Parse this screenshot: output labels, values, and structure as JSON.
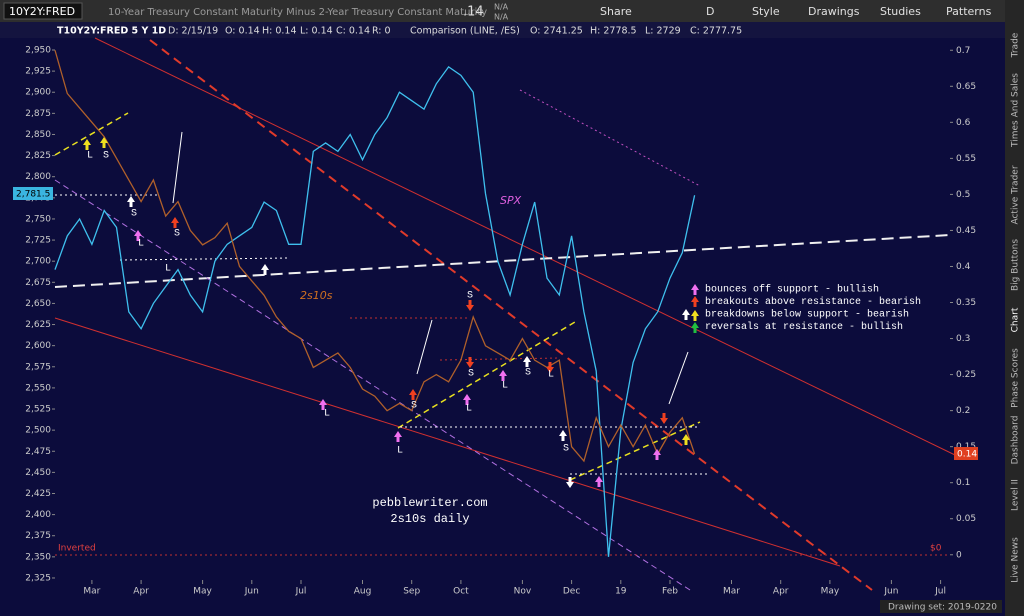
{
  "toolbar": {
    "symbol": "10Y2Y:FRED",
    "description": "10-Year Treasury Constant Maturity Minus 2-Year Treasury Constant Maturity",
    "last": ".14",
    "change": "N/A",
    "percent_change": "N/A",
    "buttons": [
      "Share",
      "D",
      "Style",
      "Drawings",
      "Studies",
      "Patterns"
    ]
  },
  "chart_header": [
    "T10Y2Y:FRED 5 Y 1D",
    "D: 2/15/19",
    "O: 0.14",
    "H: 0.14",
    "L: 0.14",
    "C: 0.14",
    "R: 0",
    "Comparison (LINE, /ES)",
    "O: 2741.25",
    "H: 2778.5",
    "L: 2729",
    "C: 2777.75"
  ],
  "price_bubbles": {
    "left": "2,781.5",
    "right": "0.14"
  },
  "annotations": {
    "legend": [
      "bounces off support - bullish",
      "breakouts above resistance - bearish",
      "breakdowns below support - bearish",
      "reversals at resistance - bullish"
    ],
    "site": "pebblewriter.com",
    "caption": "2s10s daily",
    "inverted": "Inverted",
    "zero": "$0",
    "markers": [
      "L",
      "S",
      "S",
      "L",
      "S",
      "L",
      "L",
      "S",
      "L",
      "S",
      "S",
      "L",
      "L",
      "S",
      "L",
      "S"
    ]
  },
  "sidebar": [
    "Trade",
    "Times And Sales",
    "Active Trader",
    "Big Buttons",
    "Chart",
    "Phase Scores",
    "Dashboard",
    "Level II",
    "Live News"
  ],
  "status": "Drawing set: 2019-0220",
  "chart_data": {
    "type": "line",
    "grid": false,
    "categories": [
      null,
      null,
      null,
      "Mar",
      null,
      null,
      null,
      "Apr",
      null,
      null,
      null,
      null,
      "May",
      null,
      null,
      null,
      "Jun",
      null,
      null,
      null,
      "Jul",
      null,
      null,
      null,
      null,
      "Aug",
      null,
      null,
      null,
      "Sep",
      null,
      null,
      null,
      "Oct",
      null,
      null,
      null,
      null,
      "Nov",
      null,
      null,
      null,
      "Dec",
      null,
      null,
      null,
      "19",
      null,
      null,
      null,
      "Feb",
      null,
      null,
      null,
      null,
      "Mar",
      null,
      null,
      null,
      "Apr",
      null,
      null,
      null,
      "May",
      null,
      null,
      null,
      null,
      "Jun",
      null,
      null,
      null,
      "Jul"
    ],
    "series": [
      {
        "name": "SPX",
        "color": "#3fc0ee",
        "values": [
          2690,
          2730,
          2750,
          2720,
          2760,
          2740,
          2640,
          2620,
          2650,
          2670,
          2690,
          2660,
          2640,
          2700,
          2720,
          2730,
          2740,
          2770,
          2760,
          2720,
          2720,
          2830,
          2840,
          2830,
          2850,
          2820,
          2850,
          2870,
          2900,
          2890,
          2880,
          2910,
          2930,
          2920,
          2900,
          2780,
          2700,
          2660,
          2720,
          2770,
          2680,
          2660,
          2730,
          2640,
          2570,
          2350,
          2500,
          2580,
          2620,
          2640,
          2680,
          2710,
          2778,
          null,
          null,
          null,
          null,
          null,
          null,
          null,
          null,
          null,
          null,
          null,
          null,
          null,
          null,
          null,
          null,
          null,
          null,
          null,
          null
        ]
      },
      {
        "name": "2s10s",
        "color": "#b0602a",
        "axis": "y2",
        "values": [
          0.7,
          0.64,
          0.62,
          0.6,
          0.58,
          0.55,
          0.52,
          0.49,
          0.52,
          0.47,
          0.49,
          0.45,
          0.43,
          0.44,
          0.46,
          0.4,
          0.38,
          0.36,
          0.33,
          0.31,
          0.3,
          0.26,
          0.27,
          0.28,
          0.26,
          0.23,
          0.22,
          0.2,
          0.21,
          0.2,
          0.24,
          0.25,
          0.24,
          0.27,
          0.33,
          0.29,
          0.28,
          0.27,
          0.3,
          0.27,
          0.26,
          0.27,
          0.15,
          0.13,
          0.19,
          0.15,
          0.18,
          0.15,
          0.18,
          0.14,
          0.17,
          0.19,
          0.14,
          null,
          null,
          null,
          null,
          null,
          null,
          null,
          null,
          null,
          null,
          null,
          null,
          null,
          null,
          null,
          null,
          null,
          null,
          null,
          null
        ]
      }
    ],
    "ylim": [
      2322.6,
      2964.2
    ],
    "yticks": [
      {
        "value": 2325,
        "label": "2,325"
      },
      {
        "value": 2350,
        "label": "2,350"
      },
      {
        "value": 2375,
        "label": "2,375"
      },
      {
        "value": 2400,
        "label": "2,400"
      },
      {
        "value": 2425,
        "label": "2,425"
      },
      {
        "value": 2450,
        "label": "2,450"
      },
      {
        "value": 2475,
        "label": "2,475"
      },
      {
        "value": 2500,
        "label": "2,500"
      },
      {
        "value": 2525,
        "label": "2,525"
      },
      {
        "value": 2550,
        "label": "2,550"
      },
      {
        "value": 2575,
        "label": "2,575"
      },
      {
        "value": 2600,
        "label": "2,600"
      },
      {
        "value": 2625,
        "label": "2,625"
      },
      {
        "value": 2650,
        "label": "2,650"
      },
      {
        "value": 2675,
        "label": "2,675"
      },
      {
        "value": 2700,
        "label": "2,700"
      },
      {
        "value": 2725,
        "label": "2,725"
      },
      {
        "value": 2750,
        "label": "2,750"
      },
      {
        "value": 2775,
        "label": "2,775"
      },
      {
        "value": 2800,
        "label": "2,800"
      },
      {
        "value": 2825,
        "label": "2,825"
      },
      {
        "value": 2850,
        "label": "2,850"
      },
      {
        "value": 2875,
        "label": "2,875"
      },
      {
        "value": 2900,
        "label": "2,900"
      },
      {
        "value": 2925,
        "label": "2,925"
      },
      {
        "value": 2950,
        "label": "2,950"
      }
    ],
    "y2lim": [
      -0.035,
      0.717
    ],
    "y2ticks": [
      0,
      0.05,
      0.1,
      0.15,
      0.2,
      0.25,
      0.3,
      0.35,
      0.4,
      0.45,
      0.5,
      0.55,
      0.6,
      0.65,
      0.7
    ]
  }
}
